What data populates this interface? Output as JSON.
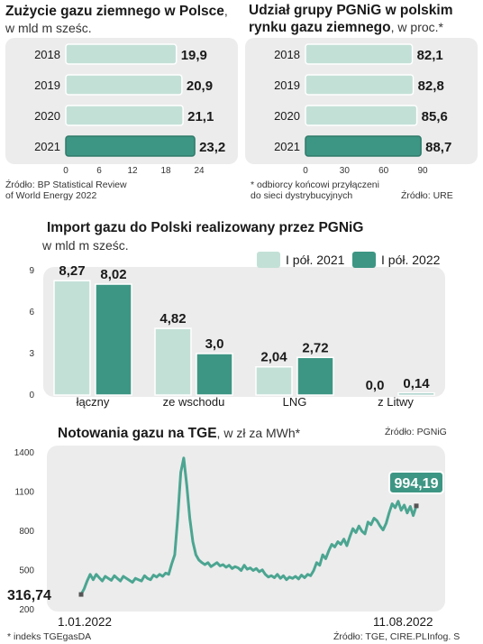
{
  "colors": {
    "light": "#c3e0d7",
    "dark": "#3d9683",
    "line": "#4ba591",
    "panel": "#ececec",
    "badge": "#3d9683"
  },
  "chart_data": [
    {
      "type": "bar",
      "orientation": "horizontal",
      "title": "Zużycie gazu ziemnego w Polsce",
      "unit": ", w mld m sześc.",
      "categories": [
        "2018",
        "2019",
        "2020",
        "2021"
      ],
      "values": [
        19.9,
        20.9,
        21.1,
        23.2
      ],
      "value_labels": [
        "19,9",
        "20,9",
        "21,1",
        "23,2"
      ],
      "xlim": [
        0,
        24
      ],
      "xticks": [
        "0",
        "6",
        "12",
        "18",
        "24"
      ],
      "highlight": "2021",
      "source": [
        "Źródło: BP Statistical Review",
        "of World Energy 2022"
      ]
    },
    {
      "type": "bar",
      "orientation": "horizontal",
      "title": "Udział grupy PGNiG w polskim rynku gazu ziemnego",
      "unit": ", w proc.*",
      "categories": [
        "2018",
        "2019",
        "2020",
        "2021"
      ],
      "values": [
        82.1,
        82.8,
        85.6,
        88.7
      ],
      "value_labels": [
        "82,1",
        "82,8",
        "85,6",
        "88,7"
      ],
      "xlim": [
        0,
        90
      ],
      "xticks": [
        "0",
        "30",
        "60",
        "90"
      ],
      "highlight": "2021",
      "footnote": [
        "* odbiorcy końcowi przyłączeni",
        "do sieci dystrybucyjnych"
      ],
      "source": "Źródło: URE"
    },
    {
      "type": "bar",
      "title": "Import gazu do Polski realizowany przez PGNiG",
      "ylabel": "w mld m sześc.",
      "categories": [
        "łączny",
        "ze wschodu",
        "LNG",
        "z Litwy"
      ],
      "series": [
        {
          "name": "I pół. 2021",
          "values": [
            8.27,
            4.82,
            2.04,
            0.0
          ],
          "labels": [
            "8,27",
            "4,82",
            "2,04",
            "0,0"
          ]
        },
        {
          "name": "I pół. 2022",
          "values": [
            8.02,
            3.0,
            2.72,
            0.14
          ],
          "labels": [
            "8,02",
            "3,0",
            "2,72",
            "0,14"
          ]
        }
      ],
      "ylim": [
        0,
        9
      ],
      "yticks": [
        "0",
        "3",
        "6",
        "9"
      ],
      "legend": "top-right",
      "source": "Źródło: PGNiG"
    },
    {
      "type": "line",
      "title": "Notowania gazu na TGE",
      "unit": ", w zł za MWh*",
      "x_start": "1.01.2022",
      "x_end": "11.08.2022",
      "ylim": [
        200,
        1400
      ],
      "yticks": [
        "200",
        "500",
        "800",
        "1100",
        "1400"
      ],
      "start_label": "316,74",
      "end_label": "994,19",
      "values": [
        316.74,
        360,
        420,
        470,
        430,
        470,
        445,
        420,
        455,
        440,
        425,
        460,
        440,
        420,
        455,
        440,
        425,
        410,
        440,
        430,
        420,
        460,
        440,
        430,
        465,
        450,
        470,
        455,
        480,
        470,
        550,
        620,
        900,
        1250,
        1360,
        1150,
        900,
        720,
        620,
        580,
        560,
        545,
        560,
        530,
        545,
        560,
        535,
        545,
        525,
        540,
        515,
        530,
        520,
        500,
        540,
        510,
        520,
        500,
        515,
        490,
        505,
        470,
        450,
        460,
        445,
        470,
        440,
        460,
        430,
        450,
        440,
        455,
        435,
        465,
        445,
        470,
        460,
        500,
        560,
        540,
        620,
        590,
        650,
        700,
        680,
        720,
        700,
        740,
        690,
        760,
        820,
        790,
        840,
        800,
        780,
        870,
        850,
        900,
        880,
        840,
        810,
        860,
        940,
        1010,
        980,
        1030,
        960,
        1000,
        940,
        990,
        920,
        994.19
      ],
      "footnote": "* indeks TGEgasDA",
      "source": "Źródło: TGE, CIRE.PL",
      "credit": "Infog. S"
    }
  ]
}
